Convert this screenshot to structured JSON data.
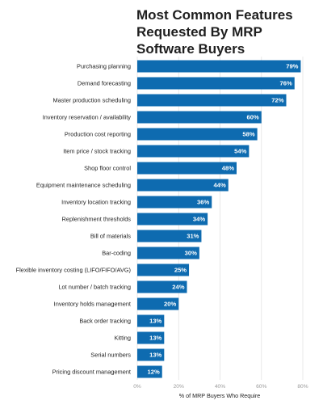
{
  "chart_data": {
    "type": "bar",
    "orientation": "horizontal",
    "title": "Most Common Features\nRequested By MRP\nSoftware Buyers",
    "xlabel": "% of MRP Buyers Who Require",
    "ylabel": "",
    "xlim": [
      0,
      80
    ],
    "xticks": [
      "0%",
      "20%",
      "40%",
      "60%",
      "80%"
    ],
    "grid": true,
    "legend": "none",
    "bar_color": "#0e6bb0",
    "categories": [
      "Purchasing planning",
      "Demand forecasting",
      "Master production scheduling",
      "Inventory reservation / availability",
      "Production cost reporting",
      "Item price / stock tracking",
      "Shop floor control",
      "Equipment maintenance scheduling",
      "Inventory location tracking",
      "Replenishment thresholds",
      "Bill of materials",
      "Bar-coding",
      "Flexible inventory costing (LIFO/FIFO/AVG)",
      "Lot number / batch tracking",
      "Inventory holds management",
      "Back order tracking",
      "Kitting",
      "Serial numbers",
      "Pricing discount management"
    ],
    "values": [
      79,
      76,
      72,
      60,
      58,
      54,
      48,
      44,
      36,
      34,
      31,
      30,
      25,
      24,
      20,
      13,
      13,
      13,
      12
    ],
    "value_labels": [
      "79%",
      "76%",
      "72%",
      "60%",
      "58%",
      "54%",
      "48%",
      "44%",
      "36%",
      "34%",
      "31%",
      "30%",
      "25%",
      "24%",
      "20%",
      "13%",
      "13%",
      "13%",
      "12%"
    ]
  }
}
